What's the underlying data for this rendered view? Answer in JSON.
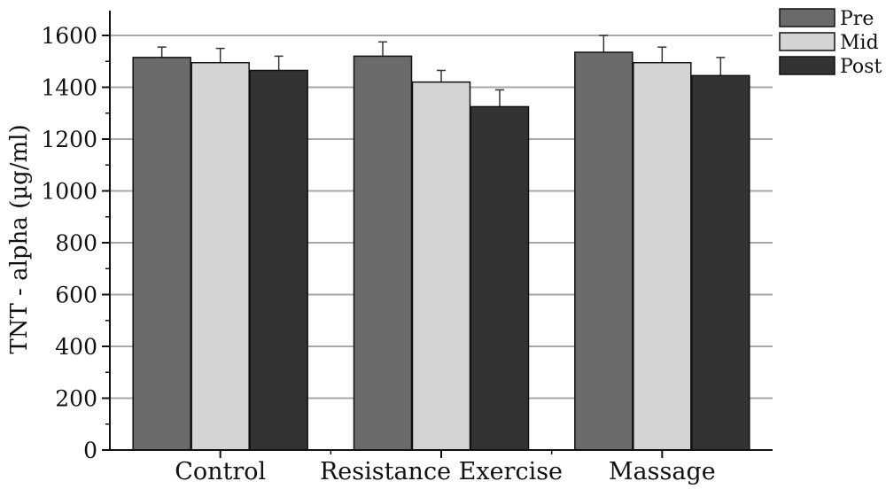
{
  "chart_data": {
    "type": "bar",
    "title": "",
    "xlabel": "",
    "ylabel": "TNT - alpha (µg/ml)",
    "ylim": [
      0,
      1700
    ],
    "yticks": [
      0,
      200,
      400,
      600,
      800,
      1000,
      1200,
      1400,
      1600
    ],
    "ytick_labels": [
      "0",
      "200",
      "400",
      "600",
      "800",
      "1000",
      "1200",
      "1400",
      "1600"
    ],
    "grid": true,
    "legend_position": "top-right",
    "categories": [
      "Control",
      "Resistance Exercise",
      "Massage"
    ],
    "series": [
      {
        "name": "Pre",
        "color": "#6b6b6b",
        "values": [
          1515,
          1520,
          1535
        ],
        "errors": [
          40,
          55,
          65
        ]
      },
      {
        "name": "Mid",
        "color": "#d4d4d4",
        "values": [
          1495,
          1420,
          1495
        ],
        "errors": [
          55,
          45,
          60
        ]
      },
      {
        "name": "Post",
        "color": "#333333",
        "values": [
          1465,
          1325,
          1445
        ],
        "errors": [
          55,
          65,
          70
        ]
      }
    ]
  }
}
